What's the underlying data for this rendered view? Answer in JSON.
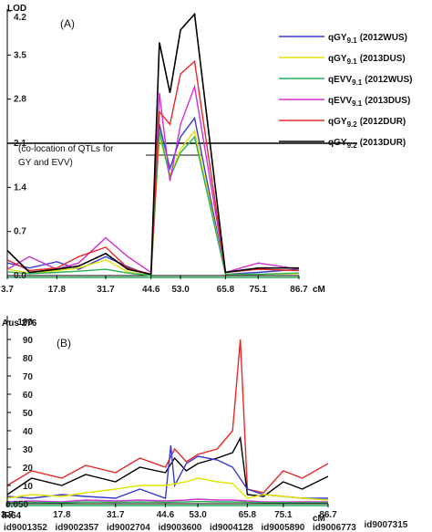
{
  "chart_data": [
    {
      "type": "line",
      "panel_label": "(A)",
      "ylabel": "LOD",
      "xlabel": "cM",
      "xlim": [
        3.7,
        86.7
      ],
      "ylim": [
        0,
        4.2
      ],
      "x_ticks": [
        "3.7",
        "17.8",
        "31.7",
        "44.6",
        "53.0",
        "65.8",
        "75.1",
        "86.7"
      ],
      "y_ticks": [
        "0.0",
        "0.7",
        "1.4",
        "2.1",
        "2.8",
        "3.5",
        "4.2"
      ],
      "threshold": 2.1,
      "annotation_lines": [
        "(co-location of QTLs for",
        "GY and EVV)"
      ],
      "legend_position": "top-right",
      "series": [
        {
          "name": "qGY",
          "sub": "9.1",
          "env": "(2012WUS)",
          "color": "#3a3ad0",
          "x": [
            3.7,
            10,
            17.8,
            24,
            31.7,
            38,
            44.6,
            47,
            50,
            53,
            57,
            65.8,
            75.1,
            86.7
          ],
          "y": [
            0.2,
            0.12,
            0.22,
            0.1,
            0.3,
            0.14,
            0.0,
            2.4,
            1.7,
            2.2,
            2.5,
            0.02,
            0.05,
            0.1
          ]
        },
        {
          "name": "qGY",
          "sub": "9.1",
          "env": "(2013DUS)",
          "color": "#e3e300",
          "x": [
            3.7,
            10,
            17.8,
            24,
            31.7,
            38,
            44.6,
            47,
            50,
            53,
            57,
            65.8,
            75.1,
            86.7
          ],
          "y": [
            0.1,
            0.04,
            0.08,
            0.12,
            0.25,
            0.06,
            0.0,
            2.2,
            1.6,
            2.0,
            2.3,
            0.02,
            0.02,
            0.03
          ]
        },
        {
          "name": "qEVV",
          "sub": "9.1",
          "env": "(2012WUS)",
          "color": "#27b05a",
          "x": [
            3.7,
            10,
            17.8,
            24,
            31.7,
            38,
            44.6,
            47,
            50,
            53,
            57,
            65.8,
            75.1,
            86.7
          ],
          "y": [
            0.06,
            0.03,
            0.05,
            0.07,
            0.1,
            0.04,
            0.0,
            2.3,
            1.55,
            1.95,
            2.2,
            0.02,
            0.02,
            0.04
          ]
        },
        {
          "name": "qEVV",
          "sub": "9.1",
          "env": "(2013DUS)",
          "color": "#d030d0",
          "x": [
            3.7,
            10,
            17.8,
            24,
            31.7,
            38,
            44.6,
            47,
            50,
            53,
            57,
            65.8,
            75.1,
            86.7
          ],
          "y": [
            0.1,
            0.3,
            0.1,
            0.2,
            0.6,
            0.3,
            0.05,
            2.9,
            1.5,
            2.4,
            3.0,
            0.05,
            0.2,
            0.1
          ]
        },
        {
          "name": "qGY",
          "sub": "9.2",
          "env": "(2012DUR)",
          "color": "#e82828",
          "x": [
            3.7,
            10,
            17.8,
            24,
            31.7,
            38,
            44.6,
            47,
            50,
            53,
            57,
            65.8,
            75.1,
            86.7
          ],
          "y": [
            0.25,
            0.08,
            0.12,
            0.3,
            0.45,
            0.12,
            0.02,
            2.6,
            2.4,
            3.2,
            3.4,
            0.05,
            0.1,
            0.08
          ]
        },
        {
          "name": "qGY",
          "sub": "9.2",
          "env": "(2013DUR)",
          "color": "#000000",
          "x": [
            3.7,
            10,
            17.8,
            24,
            31.7,
            38,
            44.6,
            47,
            50,
            53,
            57,
            65.8,
            75.1,
            86.7
          ],
          "y": [
            0.4,
            0.05,
            0.1,
            0.15,
            0.35,
            0.1,
            0.02,
            3.7,
            2.9,
            3.9,
            4.15,
            0.05,
            0.12,
            0.12
          ]
        }
      ]
    },
    {
      "type": "line",
      "panel_label": "(B)",
      "ylabel": "Aus 276",
      "bottom_label": "IR64",
      "xlabel": "cM",
      "xlim": [
        3.7,
        86.7
      ],
      "ylim": [
        0,
        100
      ],
      "x_ticks": [
        "3.7",
        "17.8",
        "31.7",
        "44.6",
        "53.0",
        "65.8",
        "75.1",
        "86.7"
      ],
      "y_ticks": [
        "0.050",
        "10",
        "20",
        "30",
        "40",
        "50",
        "60",
        "70",
        "80",
        "90",
        "100"
      ],
      "marker_labels": [
        "id9001352",
        "id9002357",
        "id9002704",
        "id9003600",
        "id9004128",
        "id9005890",
        "id9006773",
        "id9007315"
      ],
      "series": [
        {
          "color": "#e82828",
          "x": [
            3.7,
            10,
            17.8,
            24,
            31.7,
            38,
            44.6,
            47,
            50,
            53,
            58,
            62,
            64,
            65.8,
            70,
            75.1,
            80,
            86.7
          ],
          "y": [
            10,
            18,
            14,
            21,
            17,
            25,
            20,
            30,
            23,
            27,
            30,
            40,
            90,
            8,
            6,
            18,
            14,
            22
          ]
        },
        {
          "color": "#000000",
          "x": [
            3.7,
            10,
            17.8,
            24,
            31.7,
            38,
            44.6,
            47,
            50,
            53,
            58,
            62,
            64,
            65.8,
            70,
            75.1,
            80,
            86.7
          ],
          "y": [
            5,
            14,
            10,
            16,
            12,
            20,
            17,
            25,
            18,
            22,
            25,
            28,
            36,
            5,
            4,
            12,
            8,
            15
          ]
        },
        {
          "color": "#3a3ad0",
          "x": [
            3.7,
            10,
            17.8,
            24,
            31.7,
            38,
            44.6,
            46,
            47,
            50,
            53,
            58,
            62,
            65.8,
            70,
            75.1,
            80,
            86.7
          ],
          "y": [
            4,
            3,
            5,
            4,
            3,
            8,
            3,
            32,
            10,
            22,
            26,
            24,
            20,
            8,
            5,
            4,
            3,
            3
          ]
        },
        {
          "color": "#e3e300",
          "x": [
            3.7,
            10,
            17.8,
            24,
            31.7,
            38,
            44.6,
            50,
            53,
            58,
            62,
            65.8,
            70,
            75.1,
            80,
            86.7
          ],
          "y": [
            3,
            5,
            4,
            6,
            8,
            10,
            10,
            12,
            14,
            12,
            11,
            3,
            5,
            4,
            3,
            2
          ]
        },
        {
          "color": "#d030d0",
          "x": [
            3.7,
            10,
            17.8,
            24,
            31.7,
            38,
            44.6,
            50,
            53,
            58,
            62,
            65.8,
            70,
            75.1,
            80,
            86.7
          ],
          "y": [
            1,
            1.5,
            1,
            2,
            1.5,
            2,
            1.5,
            2,
            2.5,
            2,
            2,
            1.5,
            1,
            1,
            1,
            1
          ]
        },
        {
          "color": "#27b05a",
          "x": [
            3.7,
            10,
            17.8,
            24,
            31.7,
            38,
            44.6,
            50,
            53,
            58,
            62,
            65.8,
            70,
            75.1,
            80,
            86.7
          ],
          "y": [
            0.5,
            0.8,
            0.5,
            1,
            0.8,
            1,
            0.8,
            1,
            1.2,
            1,
            1,
            0.8,
            0.6,
            0.6,
            0.5,
            0.5
          ]
        }
      ]
    }
  ]
}
